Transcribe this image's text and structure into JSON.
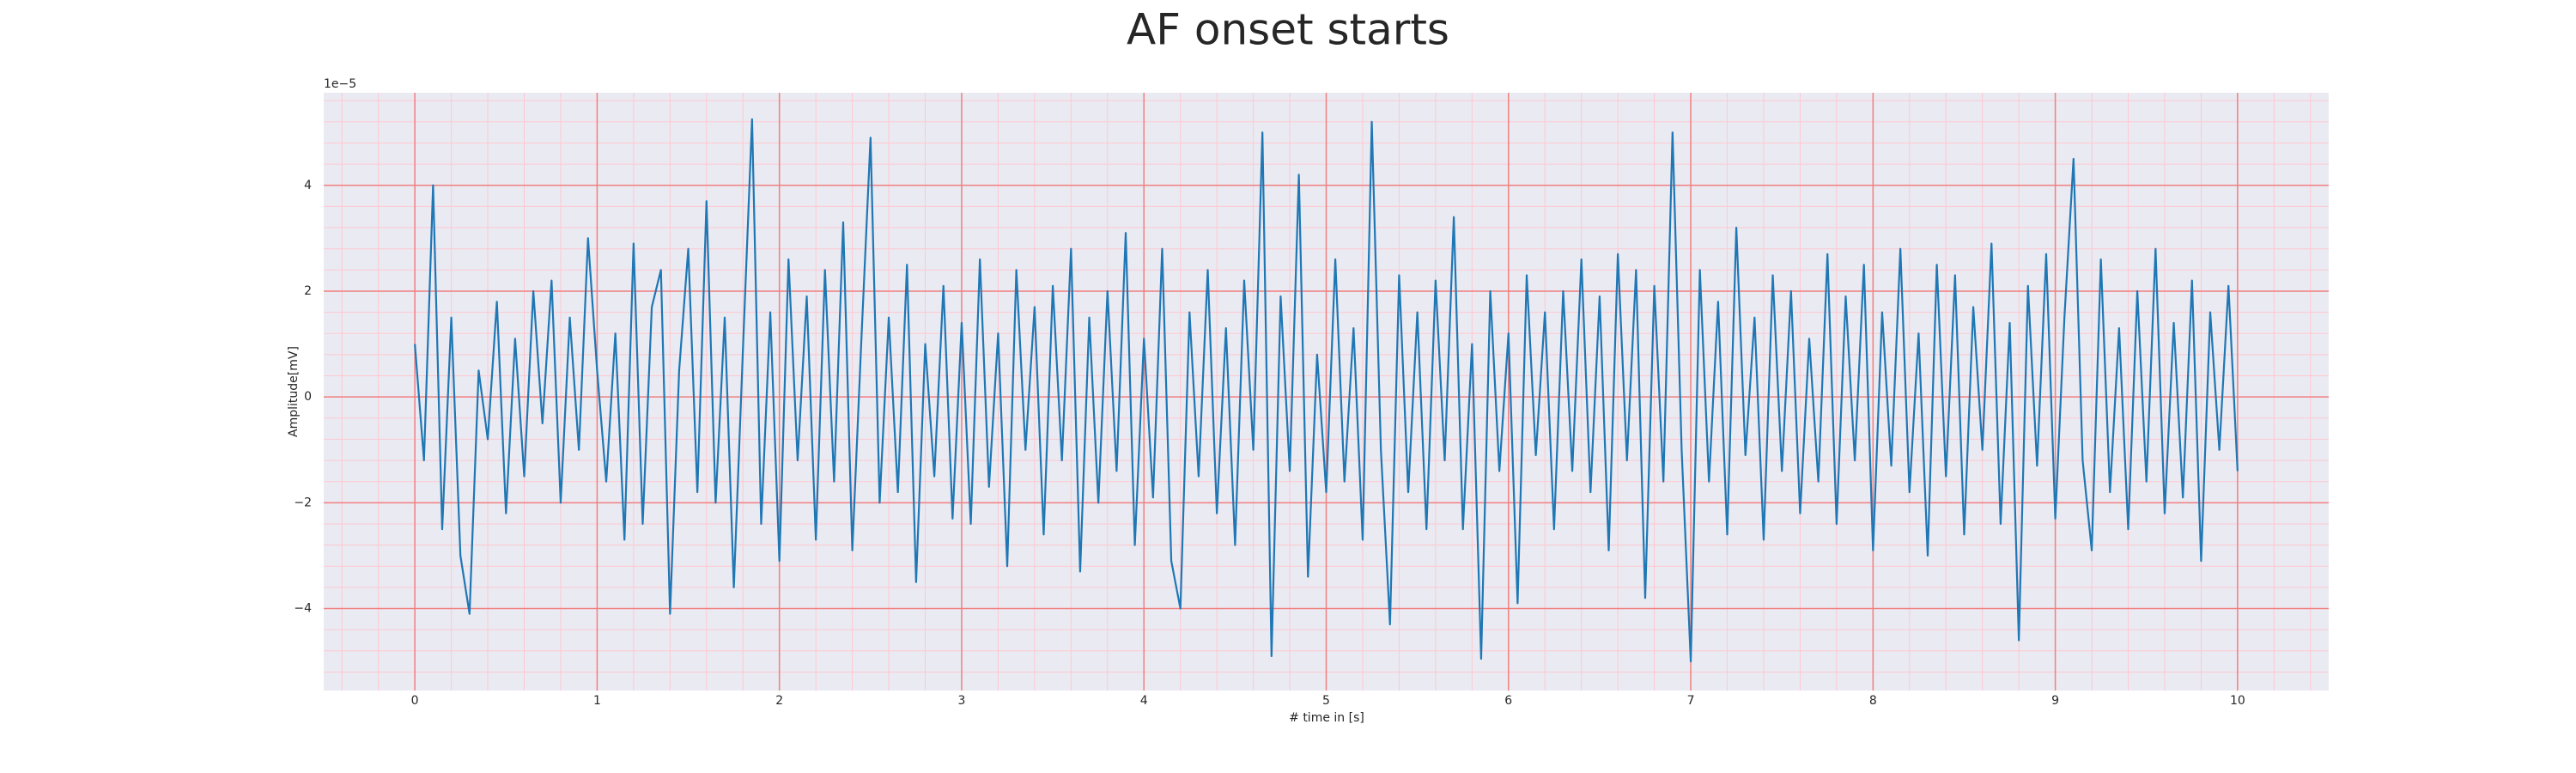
{
  "chart_data": {
    "type": "line",
    "title": "AF onset starts",
    "xlabel": "# time in [s]",
    "ylabel": "Amplitude[mV]",
    "y_offset_label": "1e−5",
    "x": [
      0,
      0.05,
      0.1,
      0.15,
      0.2,
      0.25,
      0.3,
      0.35,
      0.4,
      0.45,
      0.5,
      0.55,
      0.6,
      0.65,
      0.7,
      0.75,
      0.8,
      0.85,
      0.9,
      0.95,
      1,
      1.05,
      1.1,
      1.15,
      1.2,
      1.25,
      1.3,
      1.35,
      1.4,
      1.45,
      1.5,
      1.55,
      1.6,
      1.65,
      1.7,
      1.75,
      1.8,
      1.85,
      1.9,
      1.95,
      2,
      2.05,
      2.1,
      2.15,
      2.2,
      2.25,
      2.3,
      2.35,
      2.4,
      2.45,
      2.5,
      2.55,
      2.6,
      2.65,
      2.7,
      2.75,
      2.8,
      2.85,
      2.9,
      2.95,
      3,
      3.05,
      3.1,
      3.15,
      3.2,
      3.25,
      3.3,
      3.35,
      3.4,
      3.45,
      3.5,
      3.55,
      3.6,
      3.65,
      3.7,
      3.75,
      3.8,
      3.85,
      3.9,
      3.95,
      4,
      4.05,
      4.1,
      4.15,
      4.2,
      4.25,
      4.3,
      4.35,
      4.4,
      4.45,
      4.5,
      4.55,
      4.6,
      4.65,
      4.7,
      4.75,
      4.8,
      4.85,
      4.9,
      4.95,
      5,
      5.05,
      5.1,
      5.15,
      5.2,
      5.25,
      5.3,
      5.35,
      5.4,
      5.45,
      5.5,
      5.55,
      5.6,
      5.65,
      5.7,
      5.75,
      5.8,
      5.85,
      5.9,
      5.95,
      6,
      6.05,
      6.1,
      6.15,
      6.2,
      6.25,
      6.3,
      6.35,
      6.4,
      6.45,
      6.5,
      6.55,
      6.6,
      6.65,
      6.7,
      6.75,
      6.8,
      6.85,
      6.9,
      6.95,
      7,
      7.05,
      7.1,
      7.15,
      7.2,
      7.25,
      7.3,
      7.35,
      7.4,
      7.45,
      7.5,
      7.55,
      7.6,
      7.65,
      7.7,
      7.75,
      7.8,
      7.85,
      7.9,
      7.95,
      8,
      8.05,
      8.1,
      8.15,
      8.2,
      8.25,
      8.3,
      8.35,
      8.4,
      8.45,
      8.5,
      8.55,
      8.6,
      8.65,
      8.7,
      8.75,
      8.8,
      8.85,
      8.9,
      8.95,
      9,
      9.05,
      9.1,
      9.15,
      9.2,
      9.25,
      9.3,
      9.35,
      9.4,
      9.45,
      9.5,
      9.55,
      9.6,
      9.65,
      9.7,
      9.75,
      9.8,
      9.85,
      9.9,
      9.95,
      10
    ],
    "series": [
      {
        "color": "#1f77b4",
        "values": [
          1.0,
          -1.2,
          4.0,
          -2.5,
          1.5,
          -3.0,
          -4.1,
          0.5,
          -0.8,
          1.8,
          -2.2,
          1.1,
          -1.5,
          2.0,
          -0.5,
          2.2,
          -2.0,
          1.5,
          -1.0,
          3.0,
          0.5,
          -1.6,
          1.2,
          -2.7,
          2.9,
          -2.4,
          1.7,
          2.4,
          -4.1,
          0.5,
          2.8,
          -1.8,
          3.7,
          -2.0,
          1.5,
          -3.6,
          0.9,
          5.25,
          -2.4,
          1.6,
          -3.1,
          2.6,
          -1.2,
          1.9,
          -2.7,
          2.4,
          -1.6,
          3.3,
          -2.9,
          1.1,
          4.9,
          -2.0,
          1.5,
          -1.8,
          2.5,
          -3.5,
          1.0,
          -1.5,
          2.1,
          -2.3,
          1.4,
          -2.4,
          2.6,
          -1.7,
          1.2,
          -3.2,
          2.4,
          -1.0,
          1.7,
          -2.6,
          2.1,
          -1.2,
          2.8,
          -3.3,
          1.5,
          -2.0,
          2.0,
          -1.4,
          3.1,
          -2.8,
          1.1,
          -1.9,
          2.8,
          -3.1,
          -4.0,
          1.6,
          -1.5,
          2.4,
          -2.2,
          1.3,
          -2.8,
          2.2,
          -1.0,
          5.0,
          -4.9,
          1.9,
          -1.4,
          4.2,
          -3.4,
          0.8,
          -1.8,
          2.6,
          -1.6,
          1.3,
          -2.7,
          5.2,
          -1.0,
          -4.3,
          2.3,
          -1.8,
          1.6,
          -2.5,
          2.2,
          -1.2,
          3.4,
          -2.5,
          1.0,
          -4.95,
          2.0,
          -1.4,
          1.2,
          -3.9,
          2.3,
          -1.1,
          1.6,
          -2.5,
          2.0,
          -1.4,
          2.6,
          -1.8,
          1.9,
          -2.9,
          2.7,
          -1.2,
          2.4,
          -3.8,
          2.1,
          -1.6,
          5.0,
          -1.0,
          -5.0,
          2.4,
          -1.6,
          1.8,
          -2.6,
          3.2,
          -1.1,
          1.5,
          -2.7,
          2.3,
          -1.4,
          2.0,
          -2.2,
          1.1,
          -1.6,
          2.7,
          -2.4,
          1.9,
          -1.2,
          2.5,
          -2.9,
          1.6,
          -1.3,
          2.8,
          -1.8,
          1.2,
          -3.0,
          2.5,
          -1.5,
          2.3,
          -2.6,
          1.7,
          -1.0,
          2.9,
          -2.4,
          1.4,
          -4.6,
          2.1,
          -1.3,
          2.7,
          -2.3,
          1.5,
          4.5,
          -1.2,
          -2.9,
          2.6,
          -1.8,
          1.3,
          -2.5,
          2.0,
          -1.6,
          2.8,
          -2.2,
          1.4,
          -1.9,
          2.2,
          -3.1,
          1.6,
          -1.0,
          2.1,
          -1.4
        ]
      }
    ],
    "xlim": [
      -0.5,
      10.5
    ],
    "xticks": [
      0,
      1,
      2,
      3,
      4,
      5,
      6,
      7,
      8,
      9,
      10
    ],
    "ylim": [
      -5.55,
      5.75
    ],
    "yticks": [
      {
        "value": -4,
        "label": "−4"
      },
      {
        "value": -2,
        "label": "−2"
      },
      0,
      2,
      4
    ],
    "xminor": [
      -0.4,
      -0.2,
      0,
      0.2,
      0.4,
      0.6,
      0.8,
      1,
      1.2,
      1.4,
      1.6,
      1.8,
      2,
      2.2,
      2.4,
      2.6,
      2.8,
      3,
      3.2,
      3.4,
      3.6,
      3.8,
      4,
      4.2,
      4.4,
      4.6,
      4.8,
      5,
      5.2,
      5.4,
      5.6,
      5.8,
      6,
      6.2,
      6.4,
      6.6,
      6.8,
      7,
      7.2,
      7.4,
      7.6,
      7.8,
      8,
      8.2,
      8.4,
      8.6,
      8.8,
      9,
      9.2,
      9.4,
      9.6,
      9.8,
      10,
      10.2,
      10.4
    ],
    "yminor": [
      -5.2,
      -4.8,
      -4.4,
      -4,
      -3.6,
      -3.2,
      -2.8,
      -2.4,
      -2,
      -1.6,
      -1.2,
      -0.8,
      -0.4,
      0,
      0.4,
      0.8,
      1.2,
      1.6,
      2,
      2.4,
      2.8,
      3.2,
      3.6,
      4,
      4.4,
      4.8,
      5.2,
      5.6
    ],
    "grid": true,
    "grid_color": "#f08080",
    "minor_grid_color": "#ffc8d0",
    "background": "#eaeaf2"
  }
}
